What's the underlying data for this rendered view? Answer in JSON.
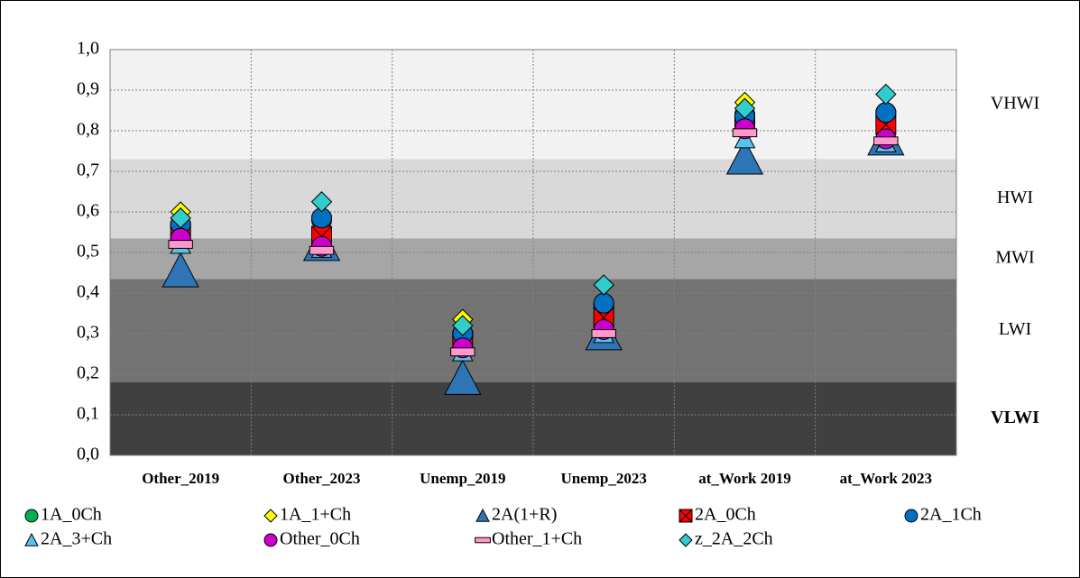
{
  "chart_data": {
    "type": "scatter",
    "categories": [
      "Other_2019",
      "Other_2023",
      "Unemp_2019",
      "Unemp_2023",
      "at_Work 2019",
      "at_Work 2023"
    ],
    "ylim": [
      0,
      1
    ],
    "yticks": [
      {
        "value": 0,
        "label": "0,0"
      },
      {
        "value": 0.1,
        "label": "0,1"
      },
      {
        "value": 0.2,
        "label": "0,2"
      },
      {
        "value": 0.3,
        "label": "0,3"
      },
      {
        "value": 0.4,
        "label": "0,4"
      },
      {
        "value": 0.5,
        "label": "0,5"
      },
      {
        "value": 0.6,
        "label": "0,6"
      },
      {
        "value": 0.7,
        "label": "0,7"
      },
      {
        "value": 0.8,
        "label": "0,8"
      },
      {
        "value": 0.9,
        "label": "0,9"
      },
      {
        "value": 1,
        "label": "1,0"
      }
    ],
    "grid": true,
    "bands": [
      {
        "label": "VLWI",
        "from": 0,
        "to": 0.18,
        "color": "#404040",
        "bold": true
      },
      {
        "label": "LWI",
        "from": 0.18,
        "to": 0.435,
        "color": "#737373"
      },
      {
        "label": "MWI",
        "from": 0.435,
        "to": 0.535,
        "color": "#a6a6a6"
      },
      {
        "label": "HWI",
        "from": 0.535,
        "to": 0.73,
        "color": "#d9d9d9"
      },
      {
        "label": "VHWI",
        "from": 0.73,
        "to": 1,
        "color": "#f2f2f2"
      }
    ],
    "series": [
      {
        "name": "1A_0Ch",
        "color": "#00b050",
        "marker": "circle",
        "values": [
          0.565,
          0.58,
          0.3,
          0.37,
          0.84,
          0.845
        ]
      },
      {
        "name": "1A_1+Ch",
        "color": "#ffff00",
        "marker": "diamond",
        "values": [
          0.6,
          0.59,
          0.335,
          0.375,
          0.87,
          0.85
        ]
      },
      {
        "name": "2A(1+R)",
        "color": "#2e75b6",
        "marker": "bigtriangle",
        "values": [
          0.455,
          0.52,
          0.19,
          0.3,
          0.733,
          0.78
        ]
      },
      {
        "name": "2A_0Ch",
        "color": "#ff0000",
        "marker": "x",
        "values": [
          0.55,
          0.54,
          0.28,
          0.34,
          0.81,
          0.815
        ]
      },
      {
        "name": "2A_1Ch",
        "color": "#0070c0",
        "marker": "circle",
        "values": [
          0.57,
          0.585,
          0.3,
          0.375,
          0.835,
          0.845
        ]
      },
      {
        "name": "2A_3+Ch",
        "color": "#5bc0eb",
        "marker": "triangle",
        "values": [
          0.52,
          0.51,
          0.255,
          0.3,
          0.78,
          0.77
        ]
      },
      {
        "name": "Other_0Ch",
        "color": "#cc00cc",
        "marker": "circle",
        "values": [
          0.535,
          0.515,
          0.265,
          0.31,
          0.805,
          0.78
        ]
      },
      {
        "name": "Other_1+Ch",
        "color": "#ff99cc",
        "marker": "dash",
        "values": [
          0.52,
          0.505,
          0.255,
          0.3,
          0.795,
          0.775
        ]
      },
      {
        "name": "z_2A_2Ch",
        "color": "#33cccc",
        "marker": "diamond",
        "values": [
          0.585,
          0.625,
          0.32,
          0.42,
          0.855,
          0.89
        ]
      }
    ]
  }
}
